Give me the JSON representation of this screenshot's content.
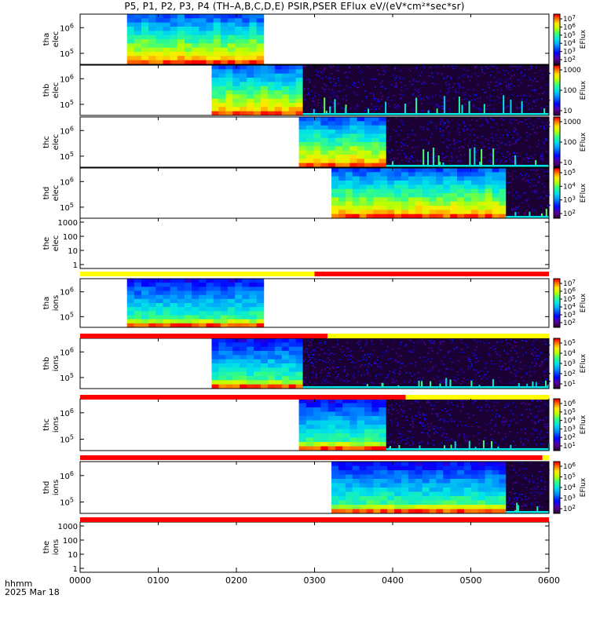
{
  "title": "P5, P1, P2, P3, P4 (TH–A,B,C,D,E) PSIR,PSER EFlux eV/(eV*cm²*sec*sr)",
  "footer": {
    "time_label": "hhmm",
    "date_label": "2025 Mar 18"
  },
  "chart_data": {
    "type": "heatmap",
    "title": "P5, P1, P2, P3, P4 (TH–A,B,C,D,E) PSIR,PSER EFlux eV/(eV*cm²*sec*sr)",
    "x_axis": {
      "label": "hhmm",
      "date": "2025 Mar 18",
      "range": [
        "0000",
        "0600"
      ],
      "ticks": [
        "0000",
        "0100",
        "0200",
        "0300",
        "0400",
        "0500",
        "0600"
      ]
    },
    "panels": [
      {
        "id": "tha-elec",
        "ylabel": [
          "tha",
          "elec"
        ],
        "yticks": [
          "10^6",
          "10^5"
        ],
        "data_start": "0036",
        "data_end": "0221",
        "burst_start": null,
        "burst_end": null,
        "profile": "elec",
        "colorbar": {
          "label": "EFlux",
          "ticks": [
            "10^7",
            "10^6",
            "10^5",
            "10^4",
            "10^3",
            "10^2"
          ]
        }
      },
      {
        "id": "thb-elec",
        "ylabel": [
          "thb",
          "elec"
        ],
        "yticks": [
          "10^6",
          "10^5"
        ],
        "data_start": "0141",
        "data_end": "0251",
        "burst_start": "0251",
        "burst_end": "0600",
        "profile": "elec",
        "colorbar": {
          "label": "EFlux",
          "ticks": [
            "1000",
            "100",
            "10"
          ]
        }
      },
      {
        "id": "thc-elec",
        "ylabel": [
          "thc",
          "elec"
        ],
        "yticks": [
          "10^6",
          "10^5"
        ],
        "data_start": "0248",
        "data_end": "0355",
        "burst_start": "0355",
        "burst_end": "0600",
        "profile": "elec",
        "colorbar": {
          "label": "EFlux",
          "ticks": [
            "1000",
            "100",
            "10"
          ]
        }
      },
      {
        "id": "thd-elec",
        "ylabel": [
          "thd",
          "elec"
        ],
        "yticks": [
          "10^6",
          "10^5"
        ],
        "data_start": "0313",
        "data_end": "0527",
        "burst_start": "0527",
        "burst_end": "0600",
        "profile": "elec",
        "colorbar": {
          "label": "EFlux",
          "ticks": [
            "10^5",
            "10^4",
            "10^3",
            "10^2"
          ]
        }
      },
      {
        "id": "the-elec",
        "ylabel": [
          "the",
          "elec"
        ],
        "yticks": [
          "1000",
          "100",
          "10",
          "1"
        ],
        "empty": true,
        "colorbar": null
      },
      {
        "id": "tha-ions",
        "ylabel": [
          "tha",
          "ions"
        ],
        "yticks": [
          "10^6",
          "10^5"
        ],
        "data_start": "0036",
        "data_end": "0221",
        "burst_start": null,
        "burst_end": null,
        "profile": "ions",
        "colorbar": {
          "label": "EFlux",
          "ticks": [
            "10^7",
            "10^6",
            "10^5",
            "10^4",
            "10^3",
            "10^2"
          ]
        }
      },
      {
        "id": "thb-ions",
        "ylabel": [
          "thb",
          "ions"
        ],
        "yticks": [
          "10^6",
          "10^5"
        ],
        "data_start": "0141",
        "data_end": "0251",
        "burst_start": "0251",
        "burst_end": "0600",
        "profile": "ions",
        "colorbar": {
          "label": "EFlux",
          "ticks": [
            "10^5",
            "10^4",
            "10^3",
            "10^2",
            "10^1"
          ]
        }
      },
      {
        "id": "thc-ions",
        "ylabel": [
          "thc",
          "ions"
        ],
        "yticks": [
          "10^6",
          "10^5"
        ],
        "data_start": "0248",
        "data_end": "0355",
        "burst_start": "0355",
        "burst_end": "0600",
        "profile": "ions",
        "colorbar": {
          "label": "EFlux",
          "ticks": [
            "10^6",
            "10^5",
            "10^4",
            "10^3",
            "10^2",
            "10^1"
          ]
        }
      },
      {
        "id": "thd-ions",
        "ylabel": [
          "thd",
          "ions"
        ],
        "yticks": [
          "10^6",
          "10^5"
        ],
        "data_start": "0313",
        "data_end": "0527",
        "burst_start": "0527",
        "burst_end": "0600",
        "profile": "ions",
        "colorbar": {
          "label": "EFlux",
          "ticks": [
            "10^6",
            "10^5",
            "10^4",
            "10^3",
            "10^2"
          ]
        }
      },
      {
        "id": "the-ions",
        "ylabel": [
          "the",
          "ions"
        ],
        "yticks": [
          "1000",
          "100",
          "10",
          "1"
        ],
        "empty": true,
        "colorbar": null
      }
    ],
    "mode_bars": [
      {
        "between": [
          "the-elec",
          "tha-ions"
        ],
        "segments": [
          {
            "from": "0000",
            "to": "0300",
            "color": "yellow"
          },
          {
            "from": "0300",
            "to": "0600",
            "color": "red"
          }
        ]
      },
      {
        "between": [
          "tha-ions",
          "thb-ions"
        ],
        "segments": [
          {
            "from": "0000",
            "to": "0310",
            "color": "red"
          },
          {
            "from": "0310",
            "to": "0600",
            "color": "yellow"
          }
        ]
      },
      {
        "between": [
          "thb-ions",
          "thc-ions"
        ],
        "segments": [
          {
            "from": "0000",
            "to": "0410",
            "color": "red"
          },
          {
            "from": "0410",
            "to": "0600",
            "color": "yellow"
          }
        ]
      },
      {
        "between": [
          "thc-ions",
          "thd-ions"
        ],
        "segments": [
          {
            "from": "0000",
            "to": "0555",
            "color": "red"
          },
          {
            "from": "0555",
            "to": "0600",
            "color": "yellow"
          }
        ]
      },
      {
        "between": [
          "thd-ions",
          "the-ions"
        ],
        "segments": [
          {
            "from": "0000",
            "to": "0600",
            "color": "red"
          }
        ]
      }
    ],
    "grid": false
  }
}
